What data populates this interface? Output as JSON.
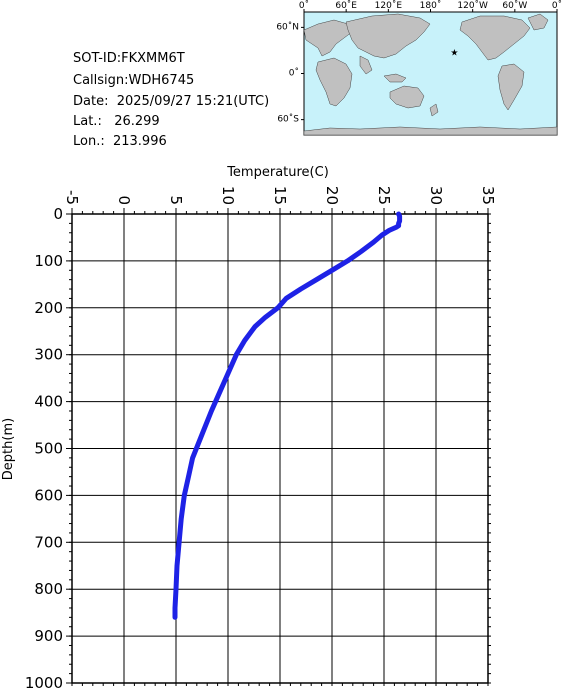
{
  "info": {
    "sot_id": "SOT-ID:FKXMM6T",
    "callsign": "Callsign:WDH6745",
    "date": "Date:  2025/09/27 15:21(UTC)",
    "lat": "Lat.:   26.299",
    "lon": "Lon.:  213.996"
  },
  "map": {
    "lon_labels": [
      "0˚",
      "60˚E",
      "120˚E",
      "180˚",
      "120˚W",
      "60˚W",
      "0˚"
    ],
    "lat_labels": [
      "60˚N",
      "0˚",
      "60˚S"
    ],
    "ocean_color": "#c8f2fa",
    "land_color": "#c0c0c0",
    "marker_color": "#ff0000",
    "marker": {
      "lat": 26.299,
      "lon": 213.996
    }
  },
  "chart_data": {
    "type": "line",
    "xlabel": "Temperature(C)",
    "ylabel": "Depth(m)",
    "x_ticks": [
      "-5",
      "0",
      "5",
      "10",
      "15",
      "20",
      "25",
      "30",
      "35"
    ],
    "y_ticks": [
      "0",
      "100",
      "200",
      "300",
      "400",
      "500",
      "600",
      "700",
      "800",
      "900",
      "1000"
    ],
    "xlim": [
      -5,
      35
    ],
    "ylim": [
      0,
      1000
    ],
    "y_inverted": true,
    "grid": true,
    "line_color": "#1e22e6",
    "series": [
      {
        "points": [
          [
            26.4,
            0
          ],
          [
            26.5,
            5
          ],
          [
            26.5,
            10
          ],
          [
            26.5,
            15
          ],
          [
            26.4,
            20
          ],
          [
            26.4,
            25
          ],
          [
            26.2,
            28
          ],
          [
            25.5,
            35
          ],
          [
            24.8,
            45
          ],
          [
            24.0,
            60
          ],
          [
            22.8,
            80
          ],
          [
            21.5,
            100
          ],
          [
            20.0,
            120
          ],
          [
            18.5,
            140
          ],
          [
            17.0,
            160
          ],
          [
            15.6,
            180
          ],
          [
            14.8,
            200
          ],
          [
            13.6,
            220
          ],
          [
            12.6,
            240
          ],
          [
            11.6,
            270
          ],
          [
            10.8,
            300
          ],
          [
            10.0,
            340
          ],
          [
            9.2,
            380
          ],
          [
            8.4,
            420
          ],
          [
            7.5,
            470
          ],
          [
            6.6,
            520
          ],
          [
            6.2,
            560
          ],
          [
            5.8,
            600
          ],
          [
            5.5,
            650
          ],
          [
            5.3,
            700
          ],
          [
            5.1,
            750
          ],
          [
            5.0,
            800
          ],
          [
            4.9,
            840
          ],
          [
            4.9,
            860
          ]
        ]
      }
    ]
  }
}
